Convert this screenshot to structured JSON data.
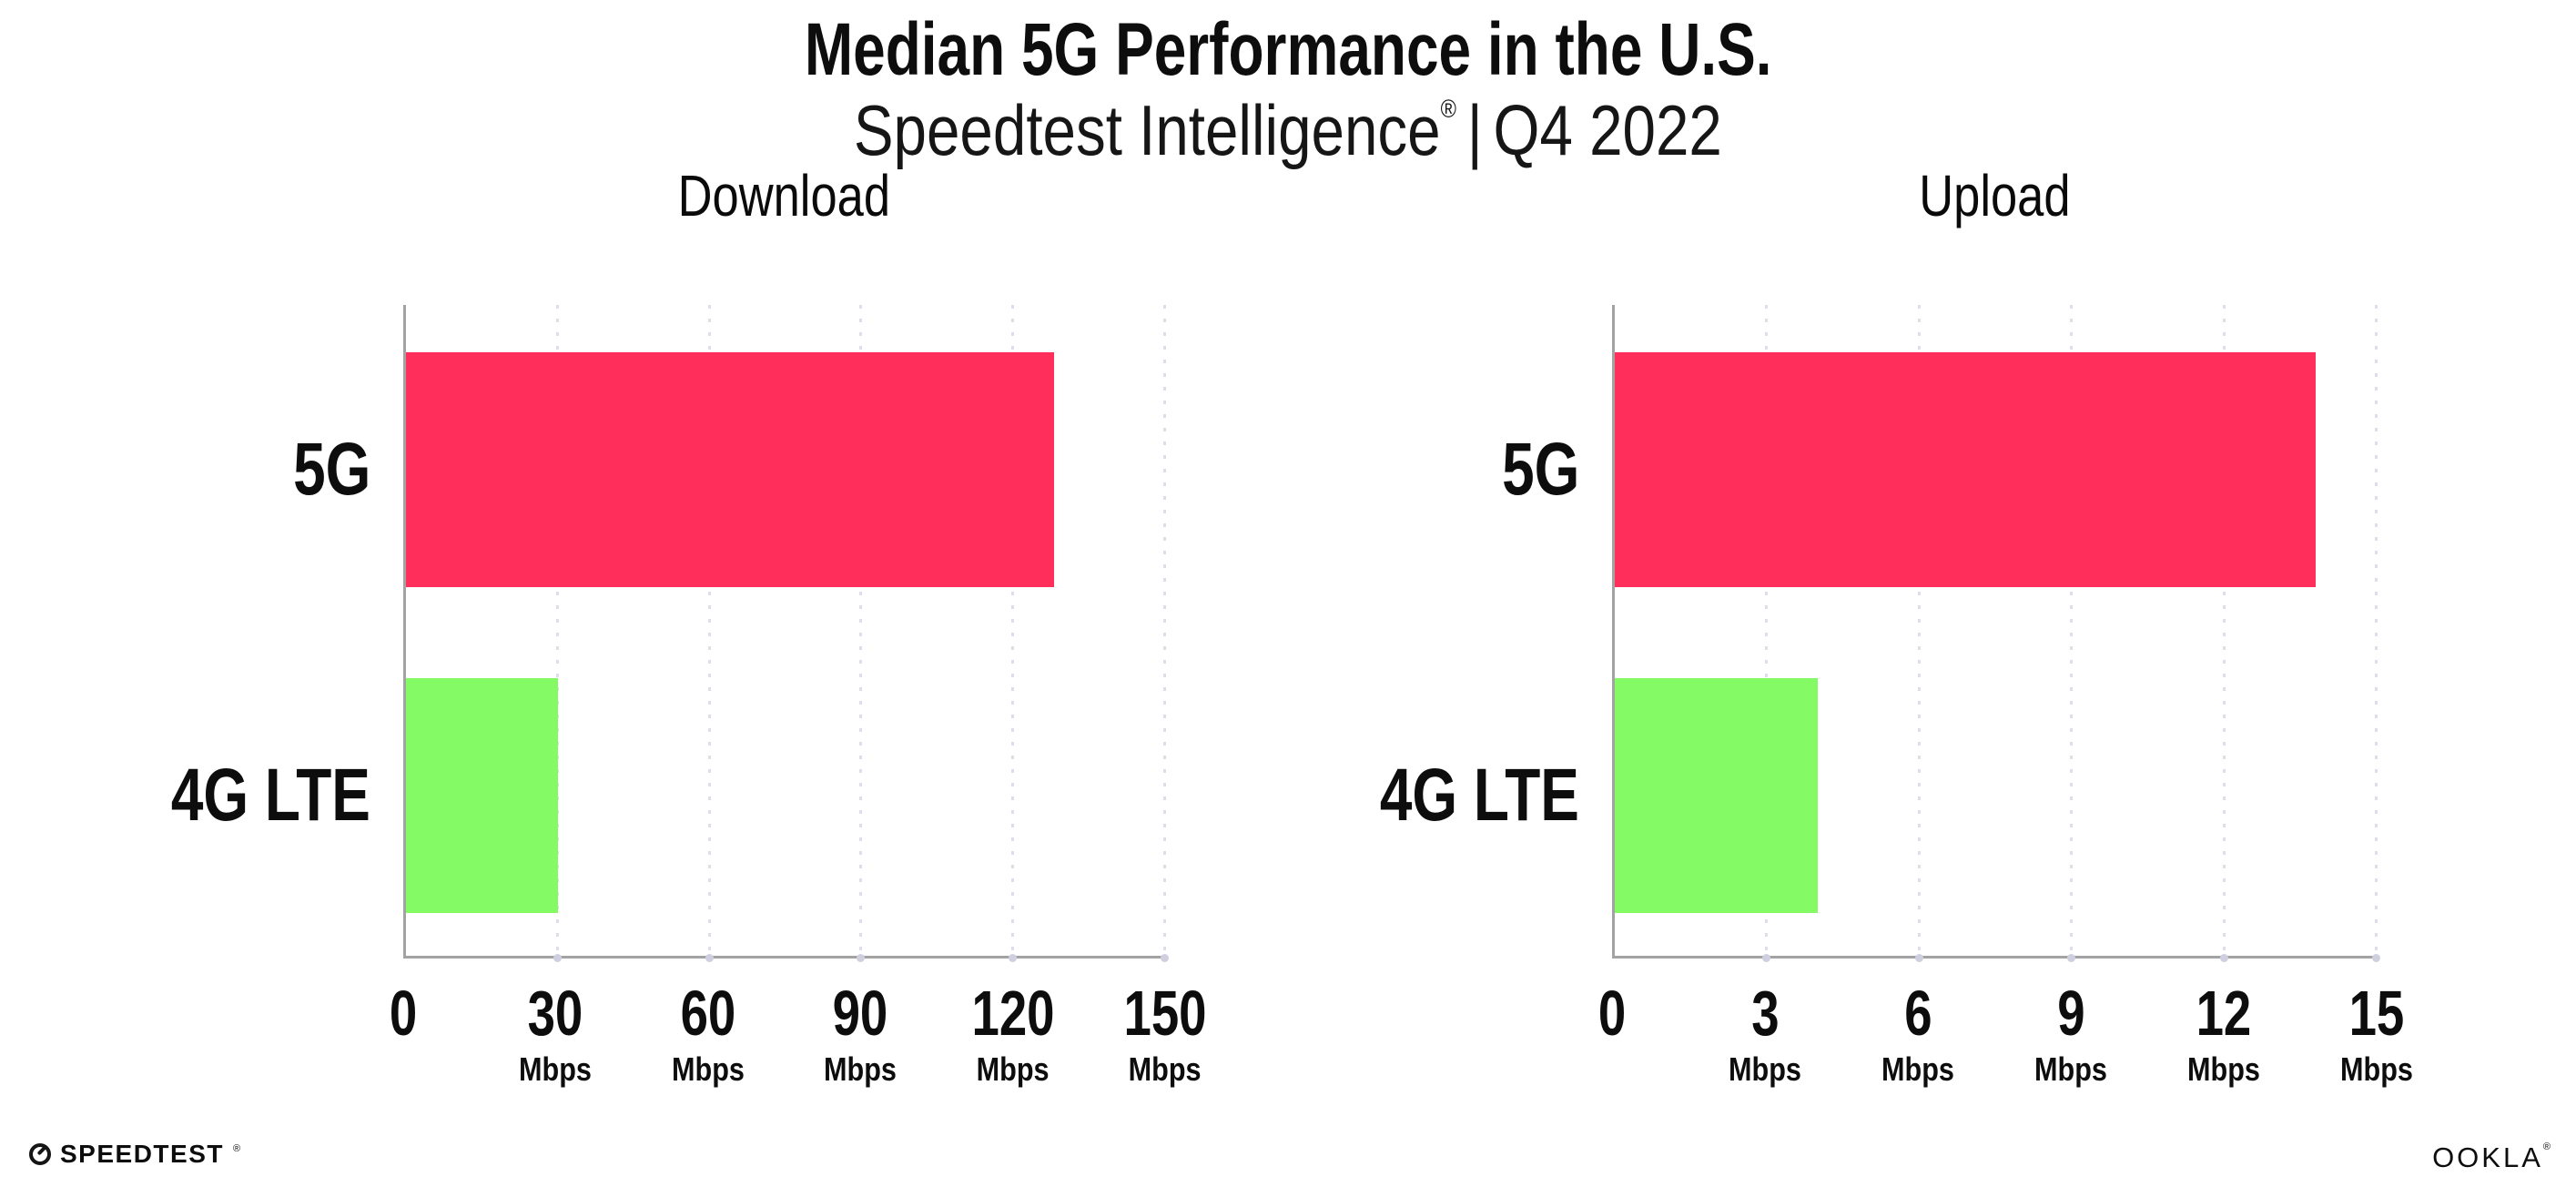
{
  "header": {
    "title": "Median 5G Performance in the U.S.",
    "subtitle_brand": "Speedtest Intelligence",
    "subtitle_reg": "®",
    "subtitle_sep": "|",
    "subtitle_period": "Q4 2022"
  },
  "chart_data": [
    {
      "type": "bar",
      "orientation": "horizontal",
      "title": "Download",
      "categories": [
        "5G",
        "4G LTE"
      ],
      "values": [
        128,
        30
      ],
      "unit": "Mbps",
      "xlim": [
        0,
        150
      ],
      "xticks": [
        0,
        30,
        60,
        90,
        120,
        150
      ],
      "series_colors": [
        "#FF2E5B",
        "#84FB64"
      ],
      "grid": "vertical-dotted",
      "legend": "none"
    },
    {
      "type": "bar",
      "orientation": "horizontal",
      "title": "Upload",
      "categories": [
        "5G",
        "4G LTE"
      ],
      "values": [
        13.8,
        4
      ],
      "unit": "Mbps",
      "xlim": [
        0,
        15
      ],
      "xticks": [
        0,
        3,
        6,
        9,
        12,
        15
      ],
      "series_colors": [
        "#FF2E5B",
        "#84FB64"
      ],
      "grid": "vertical-dotted",
      "legend": "none"
    }
  ],
  "colors": {
    "bar_5g": "#FF2E5B",
    "bar_4g_lte": "#84FB64",
    "gridline": "#DEDEEA",
    "axis": "#A3A3A3",
    "text": "#0D0D0D"
  },
  "footer": {
    "speedtest_label": "SPEEDTEST",
    "speedtest_reg": "®",
    "ookla_label": "OOKLA",
    "ookla_reg": "®"
  }
}
